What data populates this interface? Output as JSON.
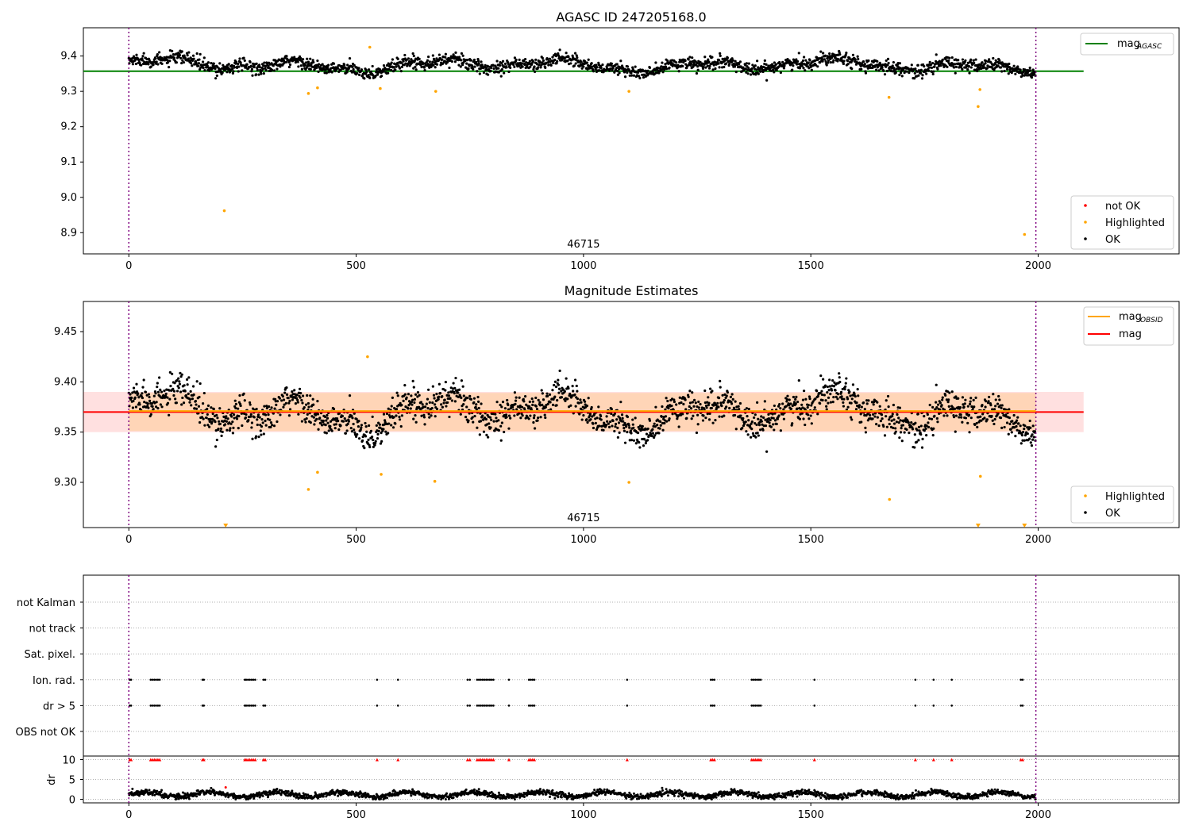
{
  "chart_data": [
    {
      "type": "scatter",
      "title": "AGASC ID 247205168.0",
      "xlim": [
        -100,
        2310
      ],
      "ylim": [
        8.84,
        9.48
      ],
      "xticks": [
        "0",
        "500",
        "1000",
        "1500",
        "2000"
      ],
      "yticks": [
        "8.9",
        "9.0",
        "9.1",
        "9.2",
        "9.3",
        "9.4"
      ],
      "ytick_values": [
        8.9,
        9.0,
        9.1,
        9.2,
        9.3,
        9.4
      ],
      "vlines": [
        0,
        1995
      ],
      "obsid_label": "46715",
      "obsid_label_x": 1000,
      "hline": {
        "label": "mag",
        "label_sub": "AGASC",
        "value": 9.357,
        "color": "#008000",
        "x_range": [
          -100,
          2100
        ]
      },
      "ok_band": {
        "n": 1995,
        "base": 9.374,
        "wave_amp": 0.022,
        "noise": 0.02,
        "color": "#000000"
      },
      "highlighted": {
        "x": [
          210,
          395,
          415,
          530,
          553,
          675,
          1100,
          1672,
          1868,
          1872,
          1970
        ],
        "y": [
          8.962,
          9.294,
          9.31,
          9.425,
          9.308,
          9.3,
          9.3,
          9.283,
          9.257,
          9.305,
          8.895
        ],
        "color": "#ffa500"
      },
      "not_ok": {
        "x": [],
        "y": [],
        "color": "#ff0000"
      },
      "legend_lines": [
        {
          "label": "mag",
          "sub": "AGASC",
          "color": "#008000"
        }
      ],
      "legend_points": [
        {
          "label": "not OK",
          "color": "#ff0000"
        },
        {
          "label": "Highlighted",
          "color": "#ffa500"
        },
        {
          "label": "OK",
          "color": "#000000"
        }
      ]
    },
    {
      "type": "scatter",
      "title": "Magnitude Estimates",
      "xlim": [
        -100,
        2310
      ],
      "ylim": [
        9.255,
        9.48
      ],
      "xticks": [
        "0",
        "500",
        "1000",
        "1500",
        "2000"
      ],
      "yticks": [
        "9.30",
        "9.35",
        "9.40",
        "9.45"
      ],
      "ytick_values": [
        9.3,
        9.35,
        9.4,
        9.45
      ],
      "vlines": [
        0,
        1995
      ],
      "obsid_label": "46715",
      "obsid_label_x": 1000,
      "mag_line": {
        "label": "mag",
        "value": 9.37,
        "color": "#ff0000",
        "band": [
          9.35,
          9.39
        ],
        "x_range": [
          -100,
          2100
        ]
      },
      "mag_obsid_line": {
        "label": "mag",
        "sub": "OBSID",
        "value": 9.371,
        "color": "#ffa500",
        "band": [
          9.351,
          9.389
        ],
        "x_range": [
          0,
          1995
        ]
      },
      "ok_band": {
        "n": 1995,
        "base": 9.37,
        "wave_amp": 0.022,
        "noise": 0.018,
        "color": "#000000"
      },
      "highlighted": {
        "x": [
          395,
          415,
          525,
          555,
          673,
          1100,
          1673,
          1873
        ],
        "y": [
          9.293,
          9.31,
          9.425,
          9.308,
          9.301,
          9.3,
          9.283,
          9.306
        ],
        "color": "#ffa500"
      },
      "offscale_markers": {
        "x": [
          213,
          1868,
          1970
        ],
        "color": "#ffa500"
      },
      "legend_lines": [
        {
          "label": "mag",
          "sub": "OBSID",
          "color": "#ffa500"
        },
        {
          "label": "mag",
          "sub": "",
          "color": "#ff0000"
        }
      ],
      "legend_points": [
        {
          "label": "Highlighted",
          "color": "#ffa500"
        },
        {
          "label": "OK",
          "color": "#000000"
        }
      ]
    },
    {
      "type": "scatter",
      "xlim": [
        -100,
        2310
      ],
      "xticks": [
        "0",
        "500",
        "1000",
        "1500",
        "2000"
      ],
      "flag_rows": [
        "not Kalman",
        "not track",
        "Sat. pixel.",
        "Ion. rad.",
        "dr > 5",
        "OBS not OK"
      ],
      "flag_events_x": [
        2,
        5,
        48,
        52,
        56,
        60,
        64,
        68,
        162,
        165,
        255,
        258,
        262,
        266,
        270,
        274,
        278,
        296,
        300,
        546,
        592,
        745,
        750,
        766,
        770,
        774,
        778,
        782,
        786,
        790,
        794,
        798,
        802,
        836,
        880,
        884,
        888,
        892,
        1096,
        1280,
        1284,
        1288,
        1370,
        1374,
        1378,
        1382,
        1386,
        1390,
        1508,
        1730,
        1770,
        1810,
        1962,
        1966
      ],
      "flag_event_rows": [
        "Ion. rad.",
        "dr > 5"
      ],
      "dr_axis": {
        "label": "dr",
        "yticks": [
          "0",
          "5",
          "10"
        ],
        "ytick_values": [
          0,
          5,
          10
        ],
        "ylim": [
          -0.5,
          10.5
        ]
      },
      "dr_points": {
        "n": 1995,
        "base": 1.2,
        "amp": 0.6,
        "noise": 0.35,
        "color": "#000000"
      },
      "dr_outlier": {
        "x": 213,
        "y": 3.0,
        "color": "#ff0000"
      },
      "dr_clipped_color": "#ff0000",
      "vlines": [
        0,
        1995
      ]
    }
  ]
}
